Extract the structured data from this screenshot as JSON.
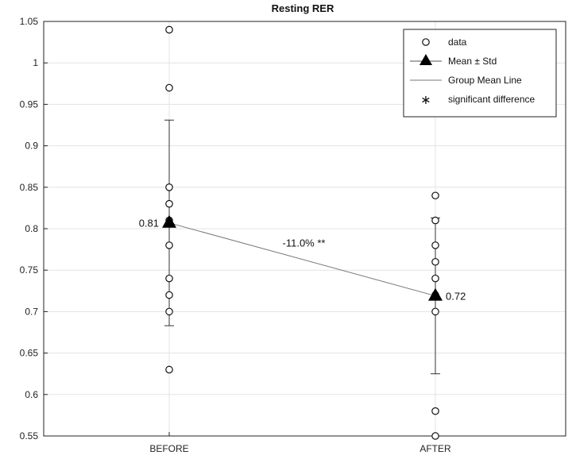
{
  "chart_data": {
    "type": "scatter",
    "title": "Resting RER",
    "xlabel": "",
    "ylabel": "",
    "categories": [
      "BEFORE",
      "AFTER"
    ],
    "ylim": [
      0.55,
      1.05
    ],
    "yticks": [
      "0.55",
      "0.6",
      "0.65",
      "0.7",
      "0.75",
      "0.8",
      "0.85",
      "0.9",
      "0.95",
      "1",
      "1.05"
    ],
    "grid": true,
    "legend_position": "top-right",
    "legend": [
      {
        "label": "data",
        "marker": "circle"
      },
      {
        "label": "Mean ± Std",
        "marker": "triangle"
      },
      {
        "label": "Group Mean Line",
        "marker": "line"
      },
      {
        "label": "significant difference",
        "marker": "asterisk"
      }
    ],
    "groups": [
      {
        "category": "BEFORE",
        "points": [
          1.04,
          0.97,
          0.85,
          0.83,
          0.81,
          0.78,
          0.74,
          0.72,
          0.7,
          0.63
        ],
        "mean": 0.807,
        "std": 0.124,
        "mean_label": "0.81"
      },
      {
        "category": "AFTER",
        "points": [
          0.84,
          0.81,
          0.78,
          0.76,
          0.74,
          0.72,
          0.7,
          0.58,
          0.55
        ],
        "mean": 0.719,
        "std": 0.094,
        "mean_label": "0.72"
      }
    ],
    "annotation": "-11.0% **"
  }
}
